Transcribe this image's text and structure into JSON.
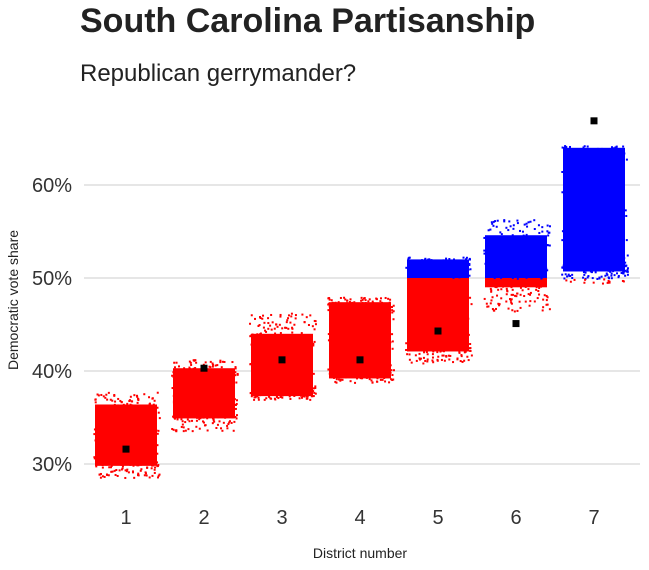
{
  "chart_data": {
    "type": "scatter",
    "title": "South Carolina Partisanship",
    "subtitle": "Republican gerrymander?",
    "xlabel": "District number",
    "ylabel": "Democratic vote share",
    "categories": [
      "1",
      "2",
      "3",
      "4",
      "5",
      "6",
      "7"
    ],
    "y_ticks": [
      "30%",
      "40%",
      "50%",
      "60%"
    ],
    "y_tick_values": [
      30,
      40,
      50,
      60
    ],
    "ylim": [
      26.5,
      71.5
    ],
    "grid": "horizontal",
    "legend": "none",
    "threshold": 50,
    "colors": {
      "republican": "#ff0000",
      "democrat": "#0000ff",
      "observed": "#000000",
      "grid": "#cccccc"
    },
    "series": [
      {
        "kind": "simulated distribution",
        "ranges": [
          {
            "district": "1",
            "core": [
              29.8,
              36.4
            ],
            "outliers": [
              28.6,
              37.8
            ]
          },
          {
            "district": "2",
            "core": [
              34.9,
              40.3
            ],
            "outliers": [
              33.6,
              41.3
            ]
          },
          {
            "district": "3",
            "core": [
              37.3,
              44.0
            ],
            "outliers": [
              37.0,
              46.3
            ]
          },
          {
            "district": "4",
            "core": [
              39.2,
              47.4
            ],
            "outliers": [
              38.7,
              48.0
            ]
          },
          {
            "district": "5",
            "core": [
              42.1,
              52.0
            ],
            "outliers": [
              40.9,
              52.3
            ]
          },
          {
            "district": "6",
            "core": [
              49.0,
              54.6
            ],
            "outliers": [
              46.5,
              56.5
            ]
          },
          {
            "district": "7",
            "core": [
              50.7,
              64.0
            ],
            "outliers": [
              49.5,
              64.3
            ]
          }
        ]
      },
      {
        "kind": "observed result",
        "values": [
          31.6,
          40.3,
          41.2,
          41.2,
          44.3,
          45.1,
          66.9
        ]
      }
    ]
  }
}
